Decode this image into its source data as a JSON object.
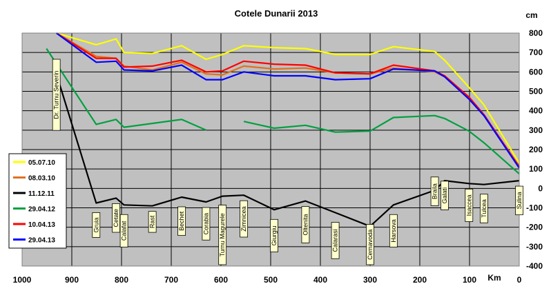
{
  "chart_data": {
    "type": "line",
    "title": "Cotele Dunarii 2013",
    "xlabel": "Km",
    "ylabel": "cm",
    "xlim": [
      1000,
      0
    ],
    "ylim": [
      -400,
      800
    ],
    "x_ticks": [
      1000,
      900,
      800,
      700,
      600,
      500,
      400,
      300,
      200,
      100,
      0
    ],
    "y_ticks": [
      800,
      700,
      600,
      500,
      400,
      300,
      200,
      100,
      0,
      -100,
      -200,
      -300,
      -400
    ],
    "grid": true,
    "legend_position": "left",
    "plot_background": "#c0c0c0",
    "stations": [
      {
        "name": "Dr. Turnu Severin",
        "km": 931
      },
      {
        "name": "Gruia",
        "km": 851
      },
      {
        "name": "Cetate",
        "km": 811
      },
      {
        "name": "Calafat",
        "km": 795
      },
      {
        "name": "Rast",
        "km": 738
      },
      {
        "name": "Bechet",
        "km": 679
      },
      {
        "name": "Corabia",
        "km": 630
      },
      {
        "name": "Turnu Magurele",
        "km": 597
      },
      {
        "name": "Zimnicea",
        "km": 554
      },
      {
        "name": "Giurgiu",
        "km": 493
      },
      {
        "name": "Oltenita",
        "km": 430
      },
      {
        "name": "Calarasi",
        "km": 370
      },
      {
        "name": "Cernavoda",
        "km": 300
      },
      {
        "name": "Harsova",
        "km": 253
      },
      {
        "name": "Braila",
        "km": 170
      },
      {
        "name": "Galati",
        "km": 150
      },
      {
        "name": "Isaccea",
        "km": 101
      },
      {
        "name": "Tulcea",
        "km": 71
      },
      {
        "name": "Sulina",
        "km": 0
      }
    ],
    "series": [
      {
        "name": "05.07.10",
        "color": "#ffff00",
        "points": [
          [
            931,
            800
          ],
          [
            851,
            740
          ],
          [
            811,
            770
          ],
          [
            795,
            700
          ],
          [
            738,
            695
          ],
          [
            679,
            735
          ],
          [
            630,
            665
          ],
          [
            597,
            690
          ],
          [
            554,
            735
          ],
          [
            493,
            725
          ],
          [
            430,
            720
          ],
          [
            370,
            690
          ],
          [
            300,
            690
          ],
          [
            253,
            730
          ],
          [
            170,
            705
          ],
          [
            150,
            660
          ],
          [
            101,
            520
          ],
          [
            71,
            430
          ],
          [
            0,
            130
          ]
        ]
      },
      {
        "name": "08.03.10",
        "color": "#e07020",
        "points": [
          [
            931,
            800
          ],
          [
            851,
            680
          ],
          [
            811,
            670
          ],
          [
            795,
            630
          ],
          [
            738,
            610
          ],
          [
            679,
            650
          ],
          [
            630,
            590
          ],
          [
            597,
            585
          ],
          [
            554,
            630
          ],
          [
            493,
            615
          ],
          [
            430,
            620
          ],
          [
            370,
            595
          ],
          [
            300,
            590
          ],
          [
            253,
            620
          ],
          [
            170,
            600
          ],
          [
            150,
            575
          ],
          [
            101,
            460
          ],
          [
            71,
            375
          ],
          [
            0,
            115
          ]
        ]
      },
      {
        "name": "11.12.11",
        "color": "#000000",
        "points": [
          [
            931,
            590
          ],
          [
            851,
            -75
          ],
          [
            811,
            -50
          ],
          [
            795,
            -85
          ],
          [
            738,
            -90
          ],
          [
            679,
            -45
          ],
          [
            630,
            -70
          ],
          [
            597,
            -40
          ],
          [
            554,
            -35
          ],
          [
            493,
            -110
          ],
          [
            430,
            -65
          ],
          [
            370,
            -125
          ],
          [
            300,
            -195
          ],
          [
            253,
            -85
          ],
          [
            170,
            -10
          ],
          [
            150,
            40
          ],
          [
            101,
            25
          ],
          [
            71,
            20
          ],
          [
            0,
            40
          ]
        ]
      },
      {
        "name": "29.04.12",
        "color": "#00a040",
        "points": [
          [
            951,
            720
          ],
          [
            851,
            330
          ],
          [
            811,
            355
          ],
          [
            795,
            315
          ],
          [
            679,
            355
          ],
          [
            630,
            300
          ],
          [
            null,
            null
          ],
          [
            554,
            345
          ],
          [
            493,
            310
          ],
          [
            430,
            325
          ],
          [
            370,
            290
          ],
          [
            300,
            295
          ],
          [
            253,
            365
          ],
          [
            170,
            375
          ],
          [
            150,
            360
          ],
          [
            101,
            295
          ],
          [
            71,
            235
          ],
          [
            0,
            75
          ]
        ]
      },
      {
        "name": "10.04.13",
        "color": "#ff0000",
        "points": [
          [
            931,
            800
          ],
          [
            851,
            670
          ],
          [
            811,
            670
          ],
          [
            795,
            625
          ],
          [
            738,
            630
          ],
          [
            679,
            660
          ],
          [
            630,
            600
          ],
          [
            597,
            605
          ],
          [
            554,
            655
          ],
          [
            493,
            640
          ],
          [
            430,
            635
          ],
          [
            370,
            595
          ],
          [
            300,
            590
          ],
          [
            253,
            635
          ],
          [
            170,
            605
          ],
          [
            150,
            580
          ],
          [
            101,
            470
          ],
          [
            71,
            380
          ],
          [
            0,
            110
          ]
        ]
      },
      {
        "name": "29.04.13",
        "color": "#0000ff",
        "points": [
          [
            931,
            800
          ],
          [
            851,
            650
          ],
          [
            811,
            655
          ],
          [
            795,
            610
          ],
          [
            738,
            605
          ],
          [
            679,
            635
          ],
          [
            630,
            560
          ],
          [
            597,
            560
          ],
          [
            554,
            600
          ],
          [
            493,
            580
          ],
          [
            430,
            580
          ],
          [
            370,
            560
          ],
          [
            300,
            565
          ],
          [
            253,
            615
          ],
          [
            170,
            605
          ],
          [
            150,
            575
          ],
          [
            101,
            460
          ],
          [
            71,
            375
          ],
          [
            0,
            105
          ]
        ]
      }
    ]
  }
}
